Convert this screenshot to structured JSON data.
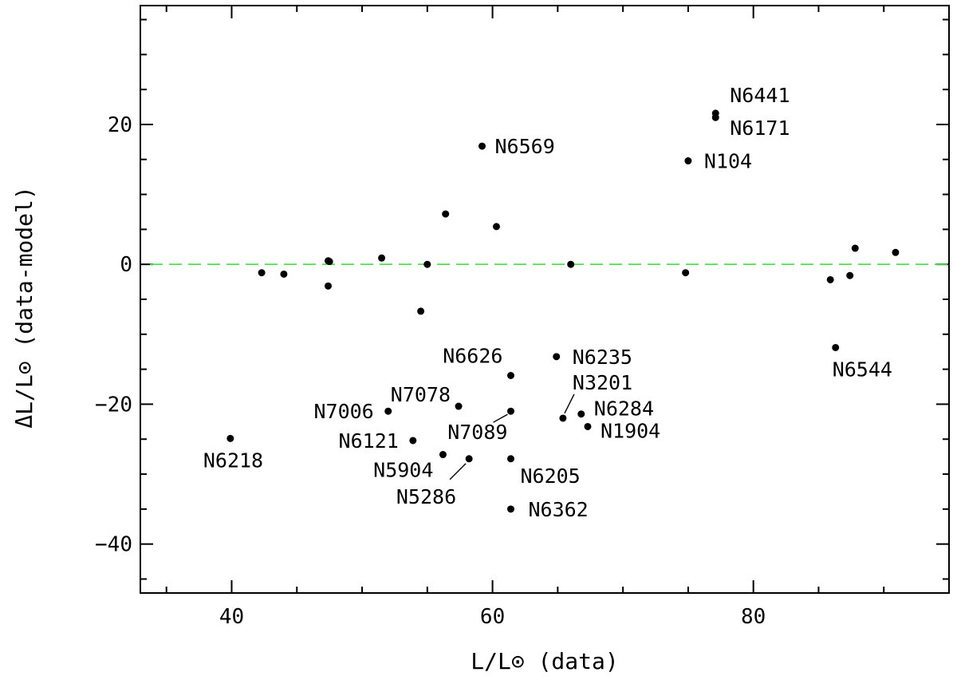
{
  "chart_data": {
    "type": "scatter",
    "title": "",
    "xlabel": "L/L⊙ (data)",
    "ylabel": "ΔL/L⊙ (data-model)",
    "xlim": [
      33,
      95
    ],
    "ylim": [
      -47,
      37
    ],
    "xticks": [
      40,
      60,
      80
    ],
    "yticks": [
      -40,
      -20,
      0,
      20
    ],
    "x_minor_step": 5,
    "y_minor_step": 5,
    "grid": false,
    "reference_line": {
      "y": 0,
      "style": "dashed",
      "color": "#44dd44"
    },
    "point_color": "#000000",
    "points": [
      {
        "x": 39.9,
        "y": -24.9,
        "label": "N6218"
      },
      {
        "x": 42.3,
        "y": -1.2,
        "label": ""
      },
      {
        "x": 44.0,
        "y": -1.4,
        "label": ""
      },
      {
        "x": 47.4,
        "y": 0.5,
        "label": ""
      },
      {
        "x": 47.5,
        "y": 0.4,
        "label": ""
      },
      {
        "x": 47.4,
        "y": -3.1,
        "label": ""
      },
      {
        "x": 51.5,
        "y": 0.9,
        "label": ""
      },
      {
        "x": 52.0,
        "y": -21.0,
        "label": "N7006"
      },
      {
        "x": 53.9,
        "y": -25.2,
        "label": "N6121"
      },
      {
        "x": 54.5,
        "y": -6.7,
        "label": ""
      },
      {
        "x": 55.0,
        "y": 0.0,
        "label": ""
      },
      {
        "x": 56.2,
        "y": -27.2,
        "label": "N5904"
      },
      {
        "x": 56.4,
        "y": 7.2,
        "label": ""
      },
      {
        "x": 57.4,
        "y": -20.3,
        "label": "N7078"
      },
      {
        "x": 58.2,
        "y": -27.8,
        "label": "N5286"
      },
      {
        "x": 59.2,
        "y": 16.9,
        "label": "N6569"
      },
      {
        "x": 60.3,
        "y": 5.4,
        "label": ""
      },
      {
        "x": 61.4,
        "y": -15.9,
        "label": "N6626"
      },
      {
        "x": 61.4,
        "y": -21.0,
        "label": "N7089"
      },
      {
        "x": 61.4,
        "y": -27.8,
        "label": "N6205"
      },
      {
        "x": 61.4,
        "y": -35.0,
        "label": "N6362"
      },
      {
        "x": 64.9,
        "y": -13.2,
        "label": "N6235"
      },
      {
        "x": 65.4,
        "y": -22.0,
        "label": "N3201"
      },
      {
        "x": 66.0,
        "y": 0.0,
        "label": ""
      },
      {
        "x": 66.8,
        "y": -21.4,
        "label": "N6284"
      },
      {
        "x": 67.3,
        "y": -23.2,
        "label": "N1904"
      },
      {
        "x": 74.8,
        "y": -1.2,
        "label": ""
      },
      {
        "x": 75.0,
        "y": 14.8,
        "label": "N104"
      },
      {
        "x": 77.1,
        "y": 21.6,
        "label": "N6441"
      },
      {
        "x": 77.1,
        "y": 21.0,
        "label": "N6171"
      },
      {
        "x": 85.9,
        "y": -2.2,
        "label": ""
      },
      {
        "x": 86.3,
        "y": -11.9,
        "label": "N6544"
      },
      {
        "x": 87.4,
        "y": -1.6,
        "label": ""
      },
      {
        "x": 87.8,
        "y": 2.3,
        "label": ""
      },
      {
        "x": 90.9,
        "y": 1.7,
        "label": ""
      }
    ]
  }
}
